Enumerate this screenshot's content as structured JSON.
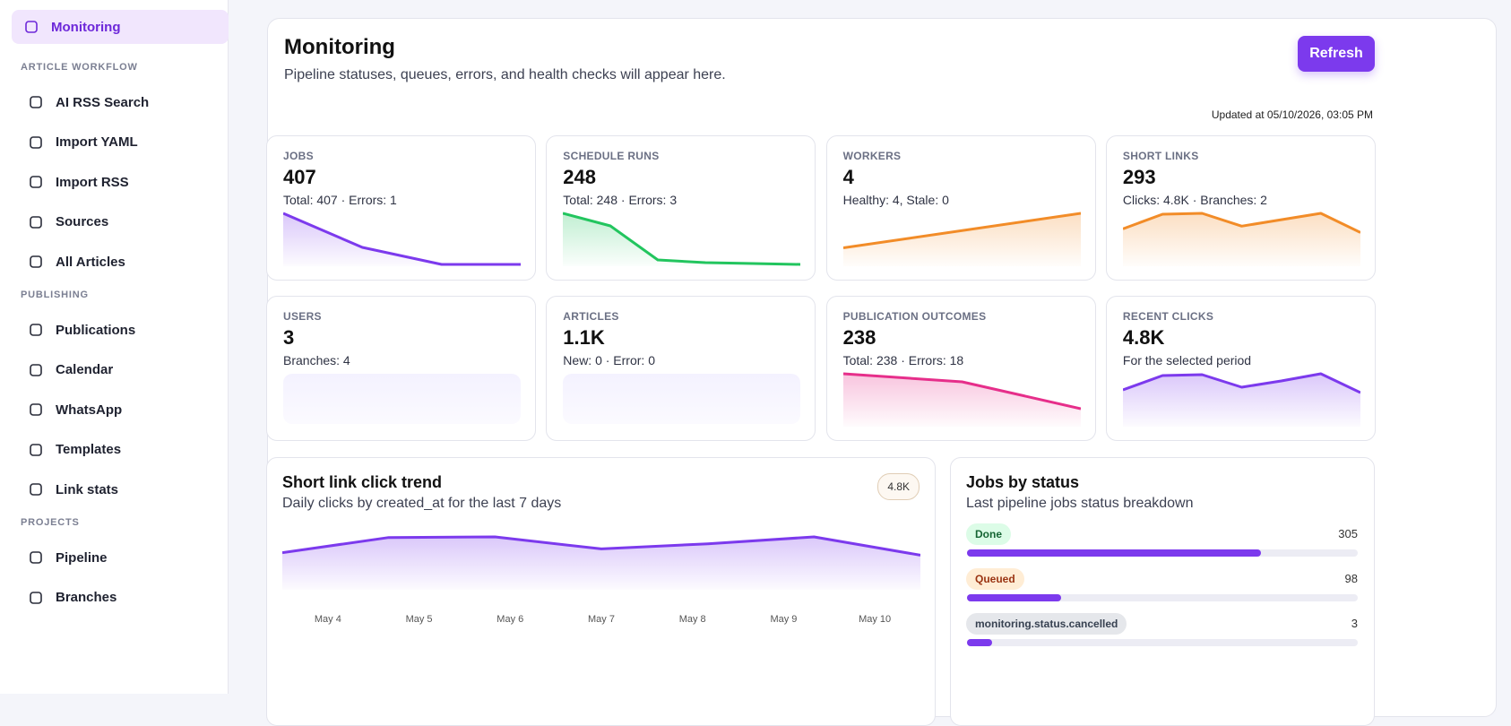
{
  "sidebar": {
    "active": "Monitoring",
    "sections": [
      {
        "title": "ARTICLE WORKFLOW",
        "items": [
          "AI RSS Search",
          "Import YAML",
          "Import RSS",
          "Sources",
          "All Articles"
        ]
      },
      {
        "title": "PUBLISHING",
        "items": [
          "Publications",
          "Calendar",
          "WhatsApp",
          "Templates",
          "Link stats"
        ]
      },
      {
        "title": "PROJECTS",
        "items": [
          "Pipeline",
          "Branches"
        ]
      }
    ]
  },
  "header": {
    "title": "Monitoring",
    "subtitle": "Pipeline statuses, queues, errors, and health checks will appear here.",
    "button": "Refresh",
    "updated": "Updated at 05/10/2026, 03:05 PM"
  },
  "cards": [
    {
      "label": "JOBS",
      "value": "407",
      "detail": "Total: 407 · Errors: 1",
      "color": "#7c3aed",
      "spark": [
        57,
        19,
        0,
        0
      ]
    },
    {
      "label": "SCHEDULE RUNS",
      "value": "248",
      "detail": "Total: 248 · Errors: 3",
      "color": "#22c55e",
      "spark": [
        57,
        43,
        5,
        2,
        1,
        0
      ]
    },
    {
      "label": "WORKERS",
      "value": "4",
      "detail": "Healthy: 4, Stale: 0",
      "color": "#f28c28",
      "spark": [
        1.3,
        4
      ]
    },
    {
      "label": "SHORT LINKS",
      "value": "293",
      "detail": "Clicks: 4.8K · Branches: 2",
      "color": "#f28c28",
      "spark": [
        39,
        55,
        56,
        42,
        49,
        56,
        35
      ]
    },
    {
      "label": "USERS",
      "value": "3",
      "detail": "Branches: 4"
    },
    {
      "label": "ARTICLES",
      "value": "1.1K",
      "detail": "New: 0 · Error: 0"
    },
    {
      "label": "PUBLICATION OUTCOMES",
      "value": "238",
      "detail": "Total: 238 · Errors: 18",
      "color": "#e62e8a",
      "spark": [
        57,
        48,
        18
      ]
    },
    {
      "label": "RECENT CLICKS",
      "value": "4.8K",
      "detail": "For the selected period",
      "color": "#7c3aed",
      "spark": [
        39,
        55,
        56,
        42,
        49,
        57,
        36
      ]
    }
  ],
  "trend": {
    "title": "Short link click trend",
    "subtitle": "Daily clicks by created_at for the last 7 days",
    "badge": "4.8K",
    "color": "#7c3aed",
    "x": [
      "May 4",
      "May 5",
      "May 6",
      "May 7",
      "May 8",
      "May 9",
      "May 10"
    ],
    "values": [
      560,
      800,
      810,
      620,
      700,
      810,
      520
    ]
  },
  "status": {
    "title": "Jobs by status",
    "subtitle": "Last pipeline jobs status breakdown",
    "bar_color": "#7c3aed",
    "items": [
      {
        "label": "Done",
        "count": 305,
        "badge_bg": "#dcfce7",
        "badge_fg": "#166534"
      },
      {
        "label": "Queued",
        "count": 98,
        "badge_bg": "#ffedd5",
        "badge_fg": "#9a3412"
      },
      {
        "label": "monitoring.status.cancelled",
        "count": 3,
        "badge_bg": "#e5e7eb",
        "badge_fg": "#374151"
      }
    ]
  }
}
